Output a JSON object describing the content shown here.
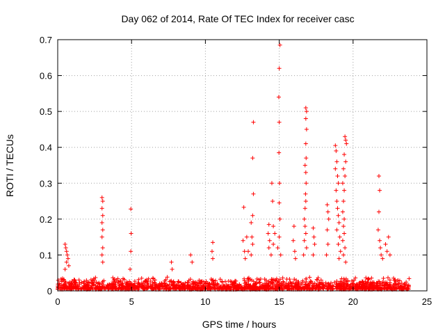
{
  "chart_data": {
    "type": "scatter",
    "title": "Day 062 of 2014, Rate Of TEC Index for receiver casc",
    "xlabel": "GPS time / hours",
    "ylabel": "ROTI / TECUs",
    "xlim": [
      0,
      25
    ],
    "ylim": [
      0,
      0.7
    ],
    "x_ticks": [
      "0",
      "5",
      "10",
      "15",
      "20",
      "25"
    ],
    "y_ticks": [
      "0",
      "0.1",
      "0.2",
      "0.3",
      "0.4",
      "0.5",
      "0.6",
      "0.7"
    ],
    "grid": true,
    "marker": "+",
    "color": "#ff0000",
    "baseline": {
      "x_start": 0,
      "x_end": 23.8,
      "y_max": 0.035
    },
    "series": [
      {
        "name": "ROTI",
        "points": [
          [
            0.5,
            0.13
          ],
          [
            0.55,
            0.12
          ],
          [
            0.6,
            0.11
          ],
          [
            0.65,
            0.1
          ],
          [
            0.7,
            0.09
          ],
          [
            0.6,
            0.08
          ],
          [
            0.75,
            0.07
          ],
          [
            0.5,
            0.06
          ],
          [
            3.0,
            0.26
          ],
          [
            3.05,
            0.25
          ],
          [
            3.0,
            0.23
          ],
          [
            3.05,
            0.21
          ],
          [
            3.0,
            0.19
          ],
          [
            3.05,
            0.17
          ],
          [
            3.0,
            0.15
          ],
          [
            3.05,
            0.12
          ],
          [
            3.0,
            0.1
          ],
          [
            3.05,
            0.08
          ],
          [
            4.95,
            0.228
          ],
          [
            4.97,
            0.16
          ],
          [
            4.95,
            0.11
          ],
          [
            4.9,
            0.06
          ],
          [
            7.7,
            0.08
          ],
          [
            7.75,
            0.06
          ],
          [
            9.0,
            0.1
          ],
          [
            9.1,
            0.08
          ],
          [
            10.5,
            0.135
          ],
          [
            10.45,
            0.11
          ],
          [
            10.5,
            0.09
          ],
          [
            12.6,
            0.233
          ],
          [
            12.55,
            0.14
          ],
          [
            12.65,
            0.11
          ],
          [
            12.7,
            0.09
          ],
          [
            12.8,
            0.15
          ],
          [
            12.9,
            0.11
          ],
          [
            13.25,
            0.47
          ],
          [
            13.2,
            0.37
          ],
          [
            13.25,
            0.27
          ],
          [
            13.2,
            0.21
          ],
          [
            13.1,
            0.19
          ],
          [
            13.15,
            0.15
          ],
          [
            13.2,
            0.13
          ],
          [
            13.1,
            0.1
          ],
          [
            14.3,
            0.185
          ],
          [
            14.25,
            0.16
          ],
          [
            14.35,
            0.14
          ],
          [
            14.3,
            0.12
          ],
          [
            14.45,
            0.1
          ],
          [
            14.5,
            0.3
          ],
          [
            14.55,
            0.25
          ],
          [
            14.6,
            0.18
          ],
          [
            14.7,
            0.16
          ],
          [
            14.6,
            0.13
          ],
          [
            15.05,
            0.685
          ],
          [
            15.0,
            0.62
          ],
          [
            14.97,
            0.54
          ],
          [
            15.0,
            0.47
          ],
          [
            14.98,
            0.385
          ],
          [
            15.02,
            0.3
          ],
          [
            15.0,
            0.245
          ],
          [
            15.05,
            0.2
          ],
          [
            15.0,
            0.15
          ],
          [
            14.9,
            0.12
          ],
          [
            15.1,
            0.1
          ],
          [
            16.0,
            0.18
          ],
          [
            15.95,
            0.14
          ],
          [
            16.05,
            0.11
          ],
          [
            16.1,
            0.09
          ],
          [
            16.8,
            0.51
          ],
          [
            16.85,
            0.5
          ],
          [
            16.8,
            0.48
          ],
          [
            16.85,
            0.45
          ],
          [
            16.8,
            0.41
          ],
          [
            16.82,
            0.37
          ],
          [
            16.75,
            0.35
          ],
          [
            16.8,
            0.33
          ],
          [
            16.82,
            0.3
          ],
          [
            16.78,
            0.27
          ],
          [
            16.8,
            0.25
          ],
          [
            16.75,
            0.23
          ],
          [
            16.7,
            0.2
          ],
          [
            16.75,
            0.18
          ],
          [
            16.8,
            0.16
          ],
          [
            16.7,
            0.14
          ],
          [
            16.85,
            0.12
          ],
          [
            16.65,
            0.1
          ],
          [
            17.3,
            0.175
          ],
          [
            17.35,
            0.15
          ],
          [
            17.4,
            0.13
          ],
          [
            17.3,
            0.1
          ],
          [
            18.25,
            0.24
          ],
          [
            18.3,
            0.22
          ],
          [
            18.35,
            0.2
          ],
          [
            18.25,
            0.17
          ],
          [
            18.3,
            0.13
          ],
          [
            18.2,
            0.1
          ],
          [
            18.8,
            0.405
          ],
          [
            18.85,
            0.39
          ],
          [
            18.9,
            0.36
          ],
          [
            18.8,
            0.34
          ],
          [
            18.95,
            0.32
          ],
          [
            19.0,
            0.3
          ],
          [
            18.85,
            0.28
          ],
          [
            18.9,
            0.25
          ],
          [
            18.95,
            0.23
          ],
          [
            19.0,
            0.21
          ],
          [
            19.05,
            0.19
          ],
          [
            18.9,
            0.17
          ],
          [
            19.1,
            0.15
          ],
          [
            19.0,
            0.13
          ],
          [
            19.15,
            0.11
          ],
          [
            19.05,
            0.09
          ],
          [
            19.45,
            0.43
          ],
          [
            19.5,
            0.42
          ],
          [
            19.55,
            0.41
          ],
          [
            19.4,
            0.38
          ],
          [
            19.5,
            0.36
          ],
          [
            19.35,
            0.34
          ],
          [
            19.45,
            0.32
          ],
          [
            19.3,
            0.3
          ],
          [
            19.4,
            0.28
          ],
          [
            19.35,
            0.25
          ],
          [
            19.3,
            0.22
          ],
          [
            19.4,
            0.2
          ],
          [
            19.35,
            0.18
          ],
          [
            19.4,
            0.16
          ],
          [
            19.3,
            0.14
          ],
          [
            19.45,
            0.12
          ],
          [
            19.35,
            0.1
          ],
          [
            19.5,
            0.08
          ],
          [
            21.75,
            0.32
          ],
          [
            21.8,
            0.28
          ],
          [
            21.75,
            0.22
          ],
          [
            21.7,
            0.17
          ],
          [
            21.8,
            0.14
          ],
          [
            21.85,
            0.12
          ],
          [
            21.9,
            0.1
          ],
          [
            22.0,
            0.09
          ],
          [
            22.2,
            0.13
          ],
          [
            22.3,
            0.11
          ],
          [
            22.4,
            0.15
          ],
          [
            22.5,
            0.1
          ]
        ]
      }
    ]
  }
}
